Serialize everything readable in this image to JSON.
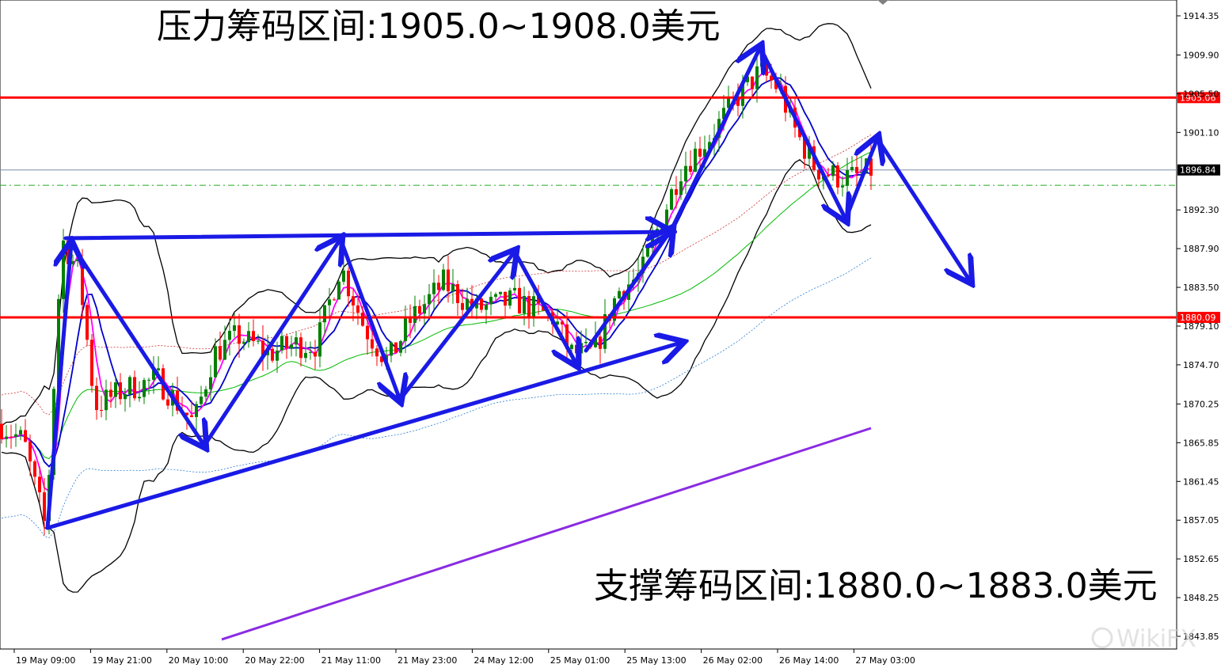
{
  "chart_data": {
    "type": "candlestick",
    "symbol_unit": "美元",
    "y_axis": {
      "ticks": [
        "1914.35",
        "1909.90",
        "1905.50",
        "1901.10",
        "1896.84",
        "1892.30",
        "1887.90",
        "1883.50",
        "1880.09",
        "1879.10",
        "1874.70",
        "1870.25",
        "1865.85",
        "1861.45",
        "1857.05",
        "1852.65",
        "1848.25",
        "1843.85"
      ],
      "range": [
        1841.6,
        1915.7
      ]
    },
    "x_axis": {
      "ticks": [
        "19 May 09:00",
        "19 May 21:00",
        "20 May 10:00",
        "20 May 22:00",
        "21 May 11:00",
        "21 May 23:00",
        "24 May 12:00",
        "25 May 01:00",
        "25 May 13:00",
        "26 May 02:00",
        "26 May 14:00",
        "27 May 03:00"
      ]
    },
    "current_price": "1896.84",
    "levels": [
      {
        "label": "1905.06",
        "value": 1905.06,
        "color": "#ff0000"
      },
      {
        "label": "1880.09",
        "value": 1880.09,
        "color": "#ff0000"
      }
    ],
    "annotations": {
      "resistance": "压力筹码区间:1905.0~1908.0美元",
      "support": "支撑筹码区间:1880.0~1883.0美元"
    },
    "colors": {
      "up": "#008000",
      "down": "#ff0000",
      "arrow": "#1a1ae6",
      "ma_fast": "#ff00ff",
      "ma_mid": "#0000cc",
      "bollinger": "#000000",
      "ma_long": "#8a2be2",
      "level": "#ff0000",
      "ma_trend": "#00bb00"
    },
    "watermark": "WikiFX"
  }
}
